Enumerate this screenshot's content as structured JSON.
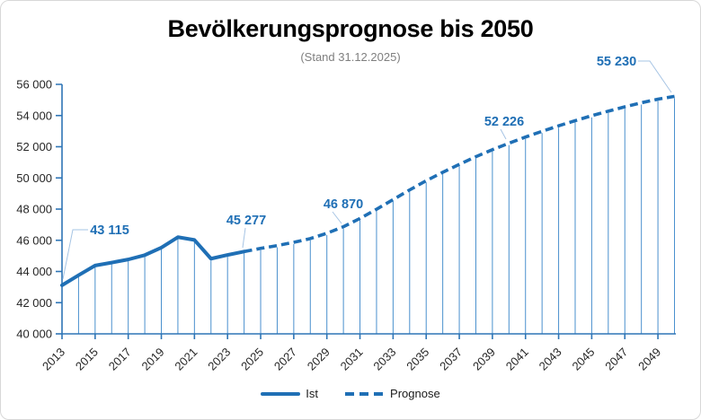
{
  "header": {
    "title": "Bevölkerungsprognose bis 2050",
    "subtitle": "(Stand 31.12.2025)"
  },
  "legend": {
    "items": [
      {
        "label": "Ist",
        "style": "solid"
      },
      {
        "label": "Prognose",
        "style": "dashed"
      }
    ]
  },
  "colors": {
    "series_line": "#1f6fb5",
    "data_label": "#1f6fb5",
    "axis": "#2e75b6",
    "drop_lines": "#4a90ce",
    "leader_lines": "#a6c4e4",
    "title": "#000000",
    "subtitle": "#7f7f7f",
    "tick_label": "#262626"
  },
  "chart_data": {
    "type": "line",
    "title": "Bevölkerungsprognose bis 2050",
    "subtitle": "(Stand 31.12.2025)",
    "legend_position": "bottom",
    "grid": false,
    "y_axis": {
      "min": 40000,
      "max": 56000,
      "step": 2000,
      "tick_labels": [
        "40 000",
        "42 000",
        "44 000",
        "46 000",
        "48 000",
        "50 000",
        "52 000",
        "54 000",
        "56 000"
      ]
    },
    "x_axis": {
      "range": [
        2013,
        2050
      ],
      "label_interval": 2,
      "labels": [
        "2013",
        "2015",
        "2017",
        "2019",
        "2021",
        "2023",
        "2025",
        "2027",
        "2029",
        "2031",
        "2033",
        "2035",
        "2037",
        "2039",
        "2041",
        "2043",
        "2045",
        "2047",
        "2049"
      ]
    },
    "series": [
      {
        "name": "Ist",
        "style": "solid",
        "start_year": 2013,
        "values": [
          43115,
          43760,
          44380,
          44570,
          44770,
          45050,
          45530,
          46200,
          46020,
          44820,
          45060,
          45277
        ]
      },
      {
        "name": "Prognose",
        "style": "dashed",
        "start_year": 2024,
        "values": [
          45277,
          45480,
          45660,
          45870,
          46110,
          46450,
          46870,
          47400,
          47990,
          48610,
          49230,
          49820,
          50360,
          50870,
          51360,
          51810,
          52226,
          52620,
          52990,
          53340,
          53670,
          53990,
          54280,
          54560,
          54820,
          55050,
          55230
        ]
      }
    ],
    "labeled_points": [
      {
        "year": 2013,
        "value": 43115,
        "label": "43 115"
      },
      {
        "year": 2024,
        "value": 45277,
        "label": "45 277"
      },
      {
        "year": 2030,
        "value": 46870,
        "label": "46 870"
      },
      {
        "year": 2040,
        "value": 52226,
        "label": "52 226"
      },
      {
        "year": 2050,
        "value": 55230,
        "label": "55 230"
      }
    ]
  }
}
